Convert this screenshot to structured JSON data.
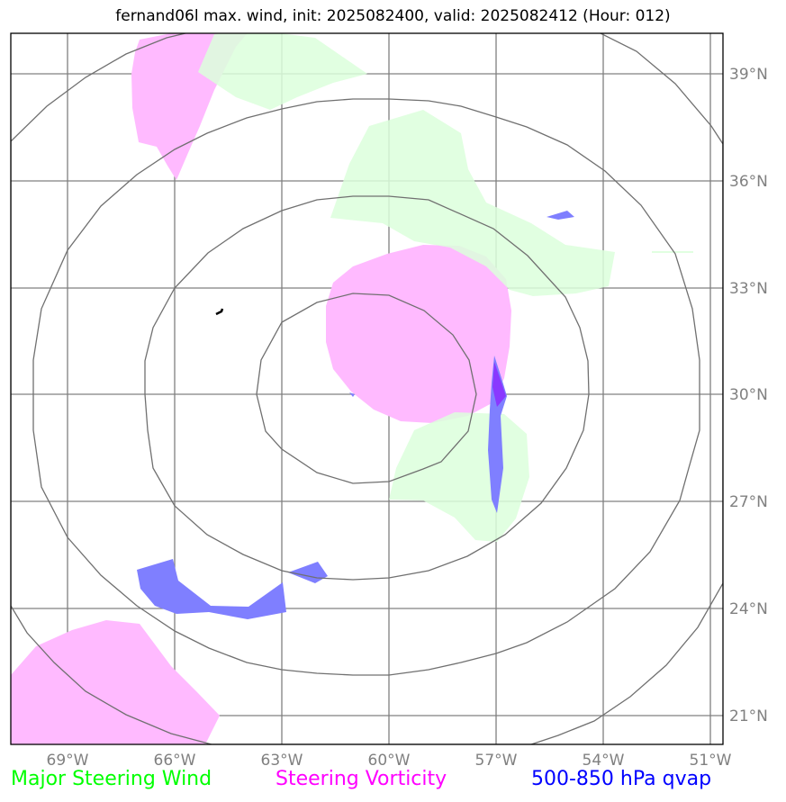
{
  "title": "fernand06l max. wind, init: 2025082400, valid: 2025082412 (Hour: 012)",
  "lon_ticks": [
    "69°W",
    "66°W",
    "63°W",
    "60°W",
    "57°W",
    "54°W",
    "51°W"
  ],
  "lat_ticks": [
    "39°N",
    "36°N",
    "33°N",
    "30°N",
    "27°N",
    "24°N",
    "21°N"
  ],
  "legend": {
    "wind": "Major Steering Wind",
    "vorticity": "Steering Vorticity",
    "qvap": "500-850 hPa qvap"
  },
  "colors": {
    "wind": "#00ff00",
    "vorticity": "#ff00ff",
    "qvap": "#0000ff",
    "wind_fill": "#dcffdc",
    "vorticity_fill": "#ffbaff",
    "qvap_fill": "#7f7fff",
    "grid": "#808080",
    "rings": "#707070"
  }
}
